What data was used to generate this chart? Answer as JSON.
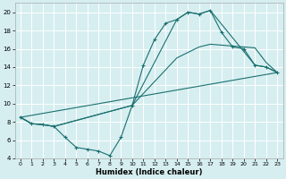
{
  "title": "",
  "xlabel": "Humidex (Indice chaleur)",
  "xlim": [
    -0.5,
    23.5
  ],
  "ylim": [
    4,
    21
  ],
  "yticks": [
    4,
    6,
    8,
    10,
    12,
    14,
    16,
    18,
    20
  ],
  "xticks": [
    0,
    1,
    2,
    3,
    4,
    5,
    6,
    7,
    8,
    9,
    10,
    11,
    12,
    13,
    14,
    15,
    16,
    17,
    18,
    19,
    20,
    21,
    22,
    23
  ],
  "bg_color": "#d6eef0",
  "line_color": "#1a7070",
  "grid_color": "#ffffff",
  "lines": [
    {
      "x": [
        0,
        1,
        2,
        3,
        4,
        5,
        6,
        7,
        8,
        9,
        10,
        11,
        12,
        13,
        14,
        15,
        16,
        17,
        18,
        19,
        20,
        21,
        22,
        23
      ],
      "y": [
        8.5,
        7.8,
        7.7,
        7.5,
        6.3,
        5.2,
        5.0,
        4.8,
        4.3,
        6.3,
        9.8,
        14.2,
        17.0,
        18.8,
        19.2,
        20.0,
        19.8,
        20.2,
        17.8,
        16.2,
        16.0,
        14.2,
        14.0,
        13.4
      ],
      "marker": "+"
    },
    {
      "x": [
        0,
        1,
        2,
        3,
        10,
        14,
        15,
        16,
        17,
        21,
        22,
        23
      ],
      "y": [
        8.5,
        7.8,
        7.7,
        7.5,
        9.8,
        19.2,
        20.0,
        19.8,
        20.2,
        14.2,
        14.0,
        13.4
      ],
      "marker": null
    },
    {
      "x": [
        0,
        1,
        2,
        3,
        10,
        14,
        16,
        17,
        21,
        22,
        23
      ],
      "y": [
        8.5,
        7.8,
        7.7,
        7.5,
        9.8,
        15.0,
        16.2,
        16.5,
        16.1,
        14.5,
        13.4
      ],
      "marker": null
    },
    {
      "x": [
        0,
        23
      ],
      "y": [
        8.5,
        13.4
      ],
      "marker": null
    }
  ]
}
